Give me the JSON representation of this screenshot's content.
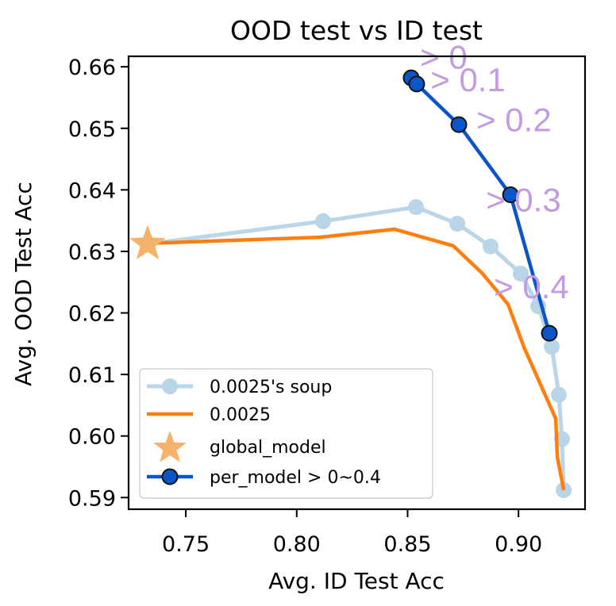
{
  "chart_data": {
    "type": "line",
    "title": "OOD test vs ID test",
    "xlabel": "Avg. ID Test Acc",
    "ylabel": "Avg. OOD Test Acc",
    "xlim": [
      0.7242,
      0.93
    ],
    "ylim": [
      0.5881,
      0.6617
    ],
    "xticks": [
      0.75,
      0.8,
      0.85,
      0.9
    ],
    "xtick_labels": [
      "0.75",
      "0.80",
      "0.85",
      "0.90"
    ],
    "yticks": [
      0.59,
      0.6,
      0.61,
      0.62,
      0.63,
      0.64,
      0.65,
      0.66
    ],
    "ytick_labels": [
      "0.59",
      "0.60",
      "0.61",
      "0.62",
      "0.63",
      "0.64",
      "0.65",
      "0.66"
    ],
    "grid": false,
    "legend_position": "lower-left",
    "series": [
      {
        "name": "0.0025's soup",
        "kind": "line-marker",
        "color": "#1f77b4",
        "alpha": 0.3,
        "x": [
          0.7328,
          0.8119,
          0.8538,
          0.8724,
          0.8874,
          0.901,
          0.9089,
          0.915,
          0.9182,
          0.9196,
          0.9204
        ],
        "y": [
          0.6312,
          0.6349,
          0.6372,
          0.6345,
          0.6308,
          0.6264,
          0.6211,
          0.6145,
          0.6067,
          0.5995,
          0.5912
        ]
      },
      {
        "name": "0.0025",
        "kind": "line",
        "color": "#ff7f0e",
        "x": [
          0.7328,
          0.8105,
          0.8441,
          0.8706,
          0.8835,
          0.8953,
          0.9025,
          0.9168,
          0.9175,
          0.9204
        ],
        "y": [
          0.6313,
          0.6323,
          0.6336,
          0.6309,
          0.6265,
          0.6214,
          0.6144,
          0.6028,
          0.5966,
          0.5912
        ]
      },
      {
        "name": "global_model",
        "kind": "star",
        "color": "#f5b26b",
        "x": [
          0.7328
        ],
        "y": [
          0.6312
        ]
      },
      {
        "name": "per_model > 0~0.4",
        "kind": "line-marker",
        "color": "#0a56c9",
        "marker_edge": "#111111",
        "x": [
          0.8516,
          0.8541,
          0.8731,
          0.8964,
          0.9139
        ],
        "y": [
          0.6582,
          0.6572,
          0.6506,
          0.6392,
          0.6167
        ]
      }
    ],
    "annotations": [
      {
        "text": "> 0",
        "x": 0.8556,
        "y": 0.6597
      },
      {
        "text": "> 0.1",
        "x": 0.8603,
        "y": 0.656
      },
      {
        "text": "> 0.2",
        "x": 0.881,
        "y": 0.6495
      },
      {
        "text": "> 0.3",
        "x": 0.8853,
        "y": 0.6365
      },
      {
        "text": "> 0.4",
        "x": 0.8889,
        "y": 0.6224
      }
    ],
    "annotation_color": "#c39be0"
  }
}
